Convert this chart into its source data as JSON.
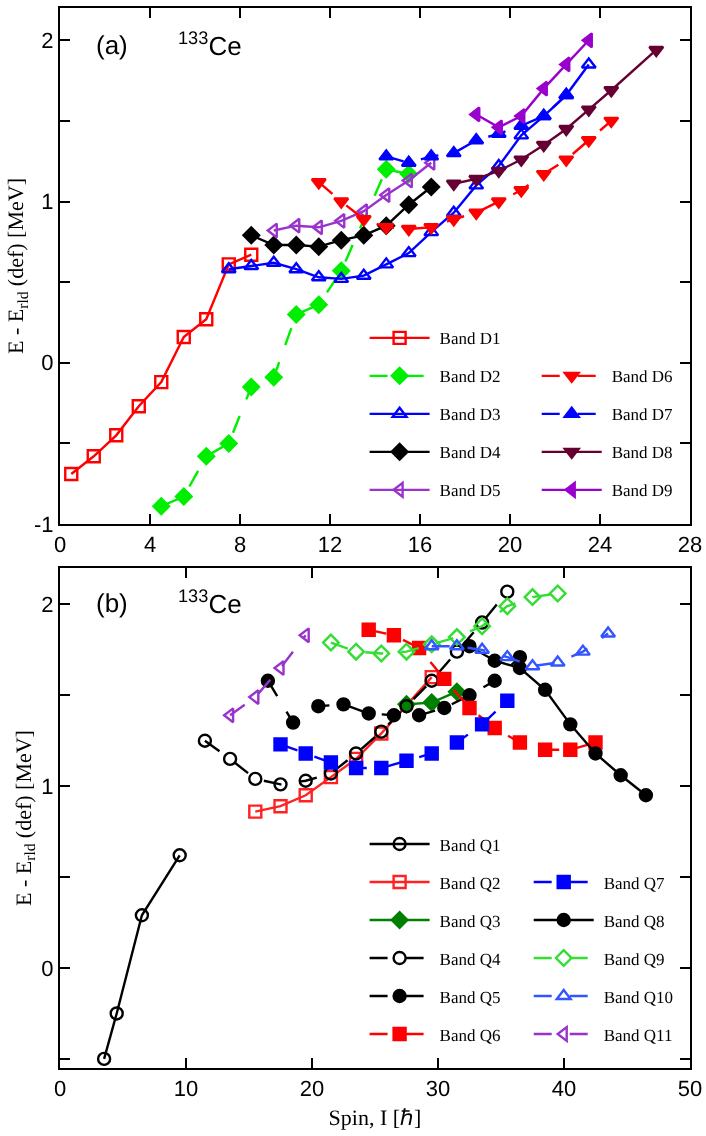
{
  "chart_data": [
    {
      "type": "line",
      "ylabel": "E - E$_{rld}$ (def) [MeV]",
      "annotations": [
        "(a)",
        "$^{133}$Ce"
      ],
      "xlim": [
        0,
        28
      ],
      "xticks": [
        0,
        4,
        8,
        12,
        16,
        20,
        24,
        28
      ],
      "ylim": [
        -1,
        2.2
      ],
      "yticks": [
        -1,
        {
          "value": -0.5,
          "label": null
        },
        0,
        {
          "value": 0.5,
          "label": null
        },
        1,
        {
          "value": 1.5,
          "label": null
        },
        2
      ],
      "grid": false,
      "legend": "bottom right",
      "series": [
        {
          "name": "Band D1",
          "color": "#ff0000",
          "marker": "square-open",
          "line_style": "solid",
          "x": [
            0.5,
            1.5,
            2.5,
            3.5,
            4.5,
            5.5,
            6.5,
            7.5,
            8.5
          ],
          "values": [
            -0.69,
            -0.58,
            -0.45,
            -0.27,
            -0.12,
            0.16,
            0.27,
            0.61,
            0.67
          ]
        },
        {
          "name": "Band D2",
          "color": "#00ee00",
          "marker": "diamond",
          "line_style": "dashed",
          "x": [
            4.5,
            5.5,
            6.5,
            7.5,
            8.5,
            9.5,
            10.5,
            11.5,
            12.5,
            13.5,
            14.5,
            15.5
          ],
          "values": [
            -0.89,
            -0.83,
            -0.58,
            -0.5,
            -0.15,
            -0.09,
            0.3,
            0.36,
            0.57,
            null,
            1.2,
            1.17
          ]
        },
        {
          "name": "Band D3",
          "color": "#0000ff",
          "marker": "triangle-up-open",
          "line_style": "solid",
          "x": [
            7.5,
            8.5,
            9.5,
            10.5,
            11.5,
            12.5,
            13.5,
            14.5,
            15.5,
            16.5,
            17.5,
            18.5,
            19.5,
            20.5,
            21.5,
            22.5,
            23.5
          ],
          "values": [
            0.58,
            0.6,
            0.62,
            0.58,
            0.53,
            0.52,
            0.54,
            0.61,
            0.68,
            0.81,
            0.93,
            1.1,
            1.22,
            1.41,
            1.53,
            1.66,
            1.85
          ]
        },
        {
          "name": "Band D4",
          "color": "#000000",
          "marker": "diamond",
          "line_style": "solid",
          "x": [
            8.5,
            9.5,
            10.5,
            11.5,
            12.5,
            13.5,
            14.5,
            15.5,
            16.5
          ],
          "values": [
            0.79,
            0.73,
            0.73,
            0.72,
            0.76,
            0.79,
            0.85,
            0.98,
            1.09
          ]
        },
        {
          "name": "Band D5",
          "color": "#9933cc",
          "marker": "triangle-left-open",
          "line_style": "solid",
          "x": [
            9.5,
            10.5,
            11.5,
            12.5,
            13.5,
            14.5,
            15.5,
            16.5
          ],
          "values": [
            0.82,
            0.85,
            0.84,
            0.88,
            0.94,
            1.04,
            1.13,
            1.24
          ]
        },
        {
          "name": "Band D6",
          "color": "#ff0000",
          "marker": "triangle-down",
          "line_style": "dashed",
          "x": [
            11.5,
            12.5,
            13.5,
            14.5,
            15.5,
            16.5,
            17.5,
            18.5,
            19.5,
            20.5,
            21.5,
            22.5,
            23.5,
            24.5
          ],
          "values": [
            1.12,
            1.0,
            0.89,
            0.84,
            0.83,
            0.84,
            0.89,
            0.93,
            1.0,
            1.07,
            1.17,
            1.26,
            1.38,
            1.5
          ]
        },
        {
          "name": "Band D7",
          "color": "#0000ff",
          "marker": "triangle-up",
          "line_style": "dashed",
          "x": [
            14.5,
            15.5,
            16.5,
            17.5,
            18.5,
            19.5,
            20.5,
            21.5,
            22.5
          ],
          "values": [
            1.28,
            1.24,
            1.28,
            1.3,
            1.38,
            1.42,
            1.47,
            1.53,
            1.66
          ]
        },
        {
          "name": "Band D8",
          "color": "#660033",
          "marker": "triangle-down",
          "line_style": "solid",
          "x": [
            17.5,
            18.5,
            19.5,
            20.5,
            21.5,
            22.5,
            23.5,
            24.5,
            26.5
          ],
          "values": [
            1.11,
            1.14,
            1.19,
            1.26,
            1.35,
            1.45,
            1.57,
            1.69,
            1.94
          ]
        },
        {
          "name": "Band D9",
          "color": "#9900cc",
          "marker": "triangle-left",
          "line_style": "solid",
          "x": [
            18.5,
            19.5,
            20.5,
            21.5,
            22.5,
            23.5
          ],
          "values": [
            1.54,
            1.46,
            1.53,
            1.7,
            1.85,
            2.0
          ]
        }
      ]
    },
    {
      "type": "line",
      "xlabel": "Spin, I [ℏ]",
      "ylabel": "E - E$_{rld}$ (def) [MeV]",
      "annotations": [
        "(b)",
        "$^{133}$Ce"
      ],
      "xlim": [
        0,
        50
      ],
      "xticks": [
        0,
        10,
        20,
        30,
        40,
        50
      ],
      "ylim": [
        -0.55,
        2.2
      ],
      "yticks": [
        {
          "value": -0.5,
          "label": null
        },
        0,
        {
          "value": 0.5,
          "label": null
        },
        1,
        {
          "value": 1.5,
          "label": null
        },
        2
      ],
      "grid": false,
      "legend": "bottom right",
      "series": [
        {
          "name": "Band Q1",
          "color": "#000000",
          "marker": "circle-open",
          "line_style": "solid",
          "x": [
            3.5,
            4.5,
            6.5,
            9.5
          ],
          "values": [
            -0.5,
            -0.25,
            0.29,
            0.62
          ]
        },
        {
          "name": "Band Q2",
          "color": "#ff2222",
          "marker": "square-open",
          "line_style": "solid",
          "x": [
            15.5,
            17.5,
            19.5,
            21.5,
            23.5,
            25.5,
            27.5,
            29.5
          ],
          "values": [
            0.86,
            0.89,
            0.95,
            1.05,
            1.15,
            1.29,
            null,
            1.6
          ]
        },
        {
          "name": "Band Q3",
          "color": "#008000",
          "marker": "diamond",
          "line_style": "solid",
          "x": [
            27.5,
            29.5,
            31.5
          ],
          "values": [
            1.45,
            1.46,
            1.52
          ]
        },
        {
          "name": "Band Q4",
          "color": "#000000",
          "marker": "circle-open",
          "line_style": "dashed",
          "x": [
            11.5,
            13.5,
            15.5,
            17.5,
            19.5,
            21.5,
            23.5,
            25.5,
            27.5,
            29.5,
            31.5,
            33.5,
            35.5
          ],
          "values": [
            1.25,
            1.15,
            1.04,
            1.01,
            1.03,
            1.07,
            1.18,
            1.3,
            1.44,
            1.58,
            1.74,
            1.9,
            2.07
          ]
        },
        {
          "name": "Band Q5",
          "color": "#000000",
          "marker": "circle",
          "line_style": "dashed",
          "x": [
            16.5,
            18.5,
            20.5,
            22.5,
            24.5,
            26.5,
            28.5,
            30.5,
            32.5,
            34.5,
            36.5
          ],
          "values": [
            1.58,
            1.35,
            1.44,
            1.45,
            1.4,
            1.39,
            1.39,
            1.43,
            1.5,
            1.58,
            1.71
          ]
        },
        {
          "name": "Band Q6",
          "color": "#ff0000",
          "marker": "square",
          "line_style": "dashed",
          "x": [
            24.5,
            26.5,
            28.5,
            30.5,
            32.5,
            34.5,
            36.5,
            38.5,
            40.5,
            42.5
          ],
          "values": [
            1.86,
            1.83,
            1.76,
            1.59,
            1.43,
            1.32,
            1.24,
            1.2,
            1.2,
            1.24
          ]
        },
        {
          "name": "Band Q7",
          "color": "#0000ff",
          "marker": "square",
          "line_style": "dashed",
          "x": [
            17.5,
            19.5,
            21.5,
            23.5,
            25.5,
            27.5,
            29.5,
            31.5,
            33.5,
            35.5
          ],
          "values": [
            1.23,
            1.18,
            1.13,
            1.1,
            1.1,
            1.14,
            1.18,
            1.24,
            1.34,
            1.47
          ]
        },
        {
          "name": "Band Q8",
          "color": "#000000",
          "marker": "circle",
          "line_style": "solid",
          "x": [
            32.5,
            34.5,
            36.5,
            38.5,
            40.5,
            42.5,
            44.5,
            46.5
          ],
          "values": [
            1.77,
            1.69,
            1.65,
            1.53,
            1.34,
            1.18,
            1.06,
            0.95
          ]
        },
        {
          "name": "Band Q9",
          "color": "#33dd33",
          "marker": "diamond-open",
          "line_style": "dashed",
          "x": [
            21.5,
            23.5,
            25.5,
            27.5,
            29.5,
            31.5,
            33.5,
            35.5,
            37.5,
            39.5
          ],
          "values": [
            1.79,
            1.74,
            1.73,
            1.74,
            1.78,
            1.82,
            1.88,
            1.99,
            2.04,
            2.06
          ]
        },
        {
          "name": "Band Q10",
          "color": "#3355ff",
          "marker": "triangle-up-open",
          "line_style": "dashed",
          "x": [
            29.5,
            31.5,
            33.5,
            35.5,
            37.5,
            39.5,
            41.5,
            43.5
          ],
          "values": [
            1.77,
            1.77,
            1.75,
            1.71,
            1.66,
            1.68,
            1.74,
            1.84
          ]
        },
        {
          "name": "Band Q11",
          "color": "#9933cc",
          "marker": "triangle-left-open",
          "line_style": "dashed",
          "x": [
            13.5,
            15.5,
            17.5,
            19.5
          ],
          "values": [
            1.39,
            1.49,
            1.65,
            1.83
          ]
        }
      ]
    }
  ]
}
